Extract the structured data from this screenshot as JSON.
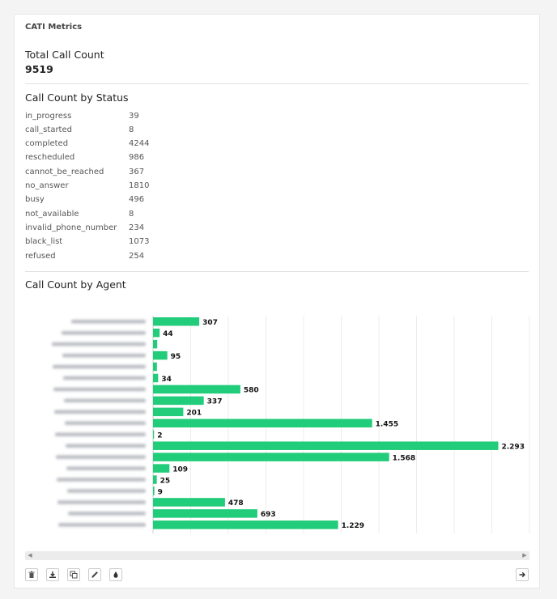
{
  "card": {
    "title": "CATI Metrics"
  },
  "total": {
    "label": "Total Call Count",
    "value": "9519"
  },
  "status_section": {
    "title": "Call Count by Status",
    "rows": [
      {
        "name": "in_progress",
        "value": "39"
      },
      {
        "name": "call_started",
        "value": "8"
      },
      {
        "name": "completed",
        "value": "4244"
      },
      {
        "name": "rescheduled",
        "value": "986"
      },
      {
        "name": "cannot_be_reached",
        "value": "367"
      },
      {
        "name": "no_answer",
        "value": "1810"
      },
      {
        "name": "busy",
        "value": "496"
      },
      {
        "name": "not_available",
        "value": "8"
      },
      {
        "name": "invalid_phone_number",
        "value": "234"
      },
      {
        "name": "black_list",
        "value": "1073"
      },
      {
        "name": "refused",
        "value": "254"
      }
    ]
  },
  "agent_section": {
    "title": "Call Count by Agent"
  },
  "chart_data": {
    "type": "bar",
    "orientation": "horizontal",
    "categories": [
      "",
      "",
      "",
      "",
      "",
      "",
      "",
      "",
      "",
      "",
      "",
      "",
      "",
      "",
      "",
      "",
      "",
      "",
      ""
    ],
    "values": [
      307,
      44,
      28,
      95,
      26,
      34,
      580,
      337,
      201,
      1455,
      2,
      2293,
      1568,
      109,
      25,
      9,
      478,
      693,
      1229
    ],
    "data_labels": [
      "307",
      "44",
      "",
      "95",
      "",
      "34",
      "580",
      "337",
      "201",
      "1.455",
      "2",
      "2.293",
      "1.568",
      "109",
      "25",
      "9",
      "478",
      "693",
      "1.229"
    ],
    "xlim": [
      0,
      2500
    ],
    "x_ticks": [
      "0",
      "250",
      "500",
      "750",
      "1000",
      "1250",
      "1500",
      "1750",
      "2000",
      "2250",
      "2500"
    ],
    "grid": true,
    "bar_color": "#21cc7a",
    "category_labels_obscured": true
  },
  "toolbar": {
    "buttons": [
      {
        "icon": "trash-icon"
      },
      {
        "icon": "download-icon"
      },
      {
        "icon": "copy-icon"
      },
      {
        "icon": "pencil-icon"
      },
      {
        "icon": "drop-icon"
      }
    ],
    "next_icon": "arrow-right-icon"
  },
  "colors": {
    "accent": "#21cc7a",
    "border": "#e0e0e0"
  }
}
